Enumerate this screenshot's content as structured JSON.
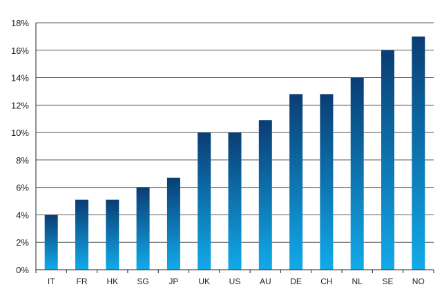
{
  "chart_data": {
    "type": "bar",
    "categories": [
      "IT",
      "FR",
      "HK",
      "SG",
      "JP",
      "UK",
      "US",
      "AU",
      "DE",
      "CH",
      "NL",
      "SE",
      "NO"
    ],
    "series": [
      {
        "values": [
          4.0,
          5.1,
          5.1,
          6.0,
          6.7,
          10.0,
          10.0,
          10.9,
          12.8,
          12.8,
          14.0,
          16.0,
          17.0
        ]
      }
    ],
    "ylim": [
      0,
      18
    ],
    "yticks": [
      0,
      2,
      4,
      6,
      8,
      10,
      12,
      14,
      16,
      18
    ],
    "ytick_labels": [
      "0%",
      "2%",
      "4%",
      "6%",
      "8%",
      "10%",
      "12%",
      "14%",
      "16%",
      "18%"
    ],
    "grid": true,
    "title": "",
    "xlabel": "",
    "ylabel": "",
    "colors": {
      "bar_top": "#0a3d73",
      "bar_bottom": "#12aaea",
      "grid": "#555555",
      "axis": "#222222"
    }
  }
}
